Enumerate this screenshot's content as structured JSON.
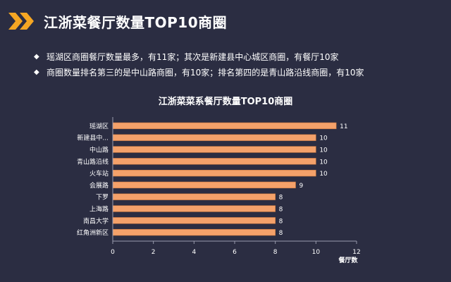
{
  "page": {
    "title": "江浙菜餐厅数量TOP10商圈",
    "bullets": [
      "瑶湖区商圈餐厅数量最多，有11家；其次是新建县中心城区商圈，有餐厅10家",
      "商圈数量排名第三的是中山路商圈，有10家；排名第四的是青山路沿线商圈，有10家"
    ]
  },
  "colors": {
    "background": "#2b2d42",
    "bar": "#f4a16a",
    "bar_edge": "#c9783f",
    "logo": "#f5a623",
    "axis": "#9a9cae"
  },
  "icons": {
    "logo": "double-chevron-right-icon",
    "bullet": "diamond-icon"
  },
  "chart_data": {
    "type": "bar",
    "orientation": "horizontal",
    "title": "江浙菜菜系餐厅数量TOP10商圈",
    "xlabel": "餐厅数",
    "ylabel": "",
    "categories": [
      "瑶湖区",
      "新建县中...",
      "中山路",
      "青山路沿线",
      "火车站",
      "会展路",
      "下罗",
      "上海路",
      "南昌大学",
      "红角洲新区"
    ],
    "values": [
      11,
      10,
      10,
      10,
      10,
      9,
      8,
      8,
      8,
      8
    ],
    "xlim": [
      0,
      12
    ],
    "xticks": [
      "0",
      "2",
      "4",
      "6",
      "8",
      "10",
      "12"
    ],
    "grid": false,
    "legend": "none"
  }
}
